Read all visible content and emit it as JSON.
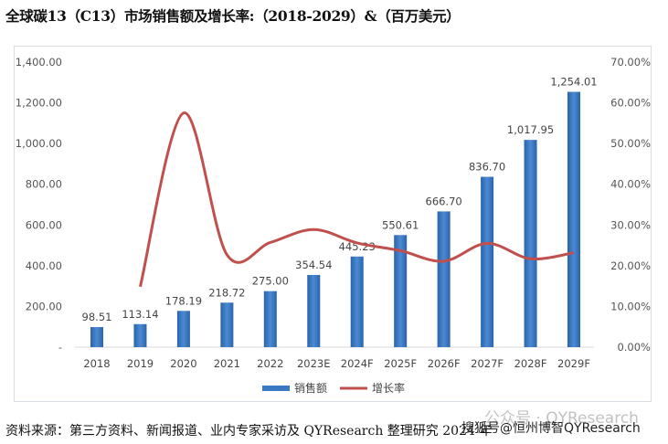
{
  "title": "全球碳13（C13）市场销售额及增长率:（2018-2029）&（百万美元）",
  "source": "资料来源：第三方资料、新闻报道、业内专家采访及 QYResearch 整理研究 2024 年",
  "watermark": "搜狐号@恒州博智QYResearch",
  "watermark2": "公众号 · QYResearch",
  "chart_data": {
    "type": "bar+line",
    "categories": [
      "2018",
      "2019",
      "2020",
      "2021",
      "2022",
      "2023E",
      "2024F",
      "2025F",
      "2026F",
      "2027F",
      "2028F",
      "2029F"
    ],
    "series": [
      {
        "name": "销售额",
        "type": "bar",
        "axis": "left",
        "color": "#3a78c3",
        "values": [
          98.51,
          113.14,
          178.19,
          218.72,
          275.0,
          354.54,
          445.23,
          550.61,
          666.7,
          836.7,
          1017.95,
          1254.01
        ],
        "labels": [
          "98.51",
          "113.14",
          "178.19",
          "218.72",
          "275.00",
          "354.54",
          "445.23",
          "550.61",
          "666.70",
          "836.70",
          "1,017.95",
          "1,254.01"
        ]
      },
      {
        "name": "增长率",
        "type": "line",
        "axis": "right",
        "color": "#c0504d",
        "values": [
          null,
          14.85,
          57.5,
          22.7,
          25.7,
          28.9,
          25.6,
          23.7,
          21.1,
          25.5,
          21.7,
          23.2
        ]
      }
    ],
    "left_axis": {
      "ylim": [
        0,
        1400
      ],
      "ticks": [
        "-",
        "200.00",
        "400.00",
        "600.00",
        "800.00",
        "1,000.00",
        "1,200.00",
        "1,400.00"
      ]
    },
    "right_axis": {
      "ylim": [
        0,
        70
      ],
      "ticks": [
        "0.00%",
        "10.00%",
        "20.00%",
        "30.00%",
        "40.00%",
        "50.00%",
        "60.00%",
        "70.00%"
      ]
    },
    "grid": false,
    "legend": "bottom"
  }
}
